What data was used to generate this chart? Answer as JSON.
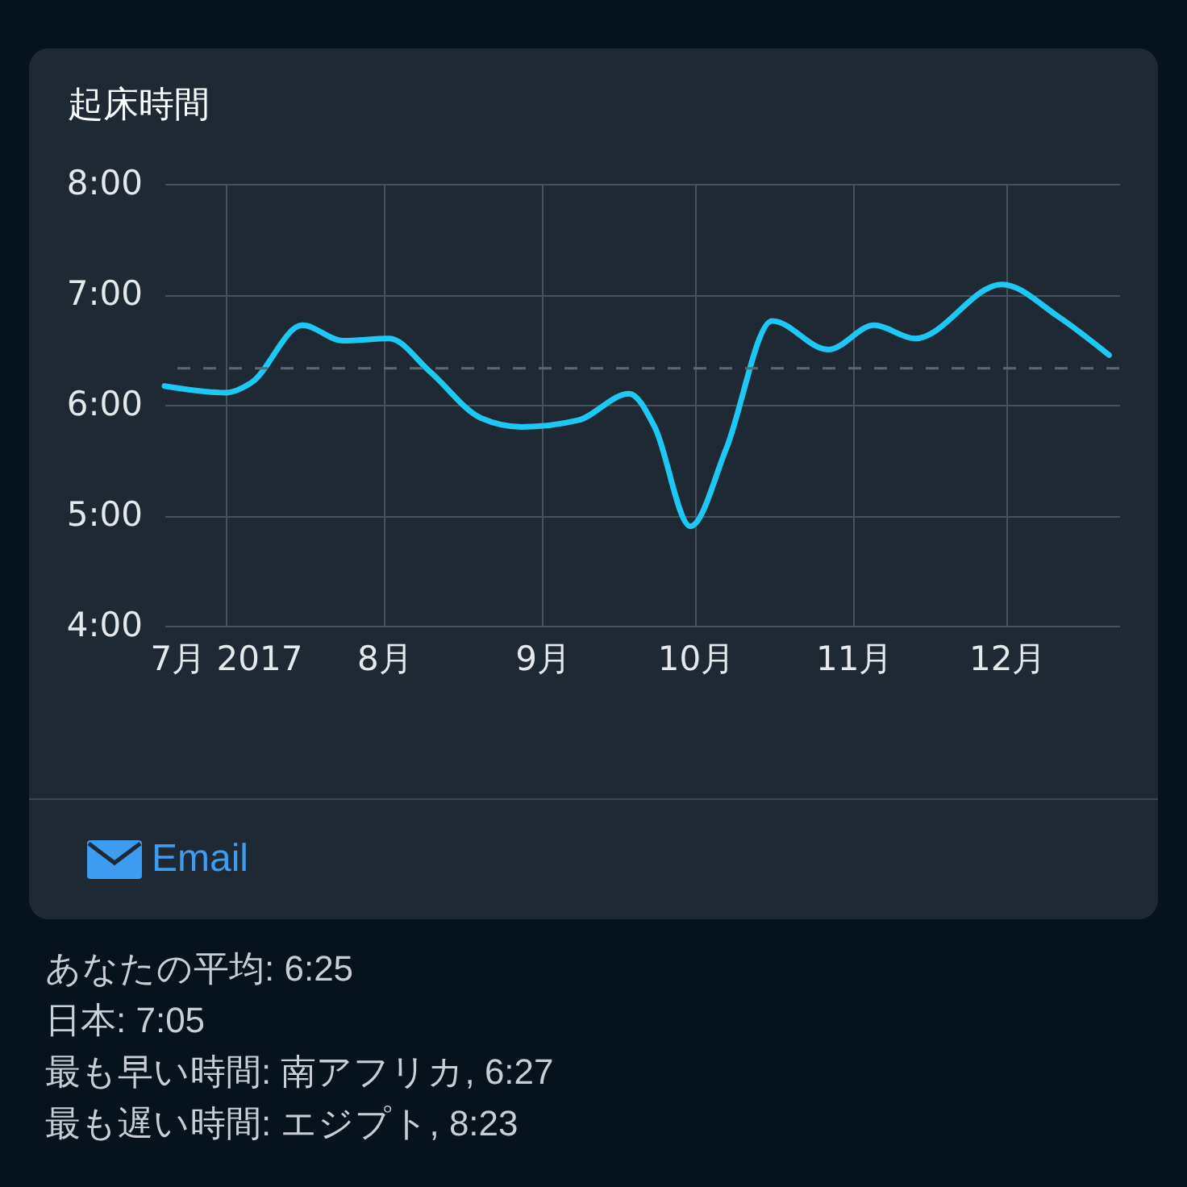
{
  "chart_data": {
    "type": "line",
    "title": "起床時間",
    "x": [
      "2017-06-19",
      "2017-07-01",
      "2017-07-06",
      "2017-07-16",
      "2017-07-24",
      "2017-08-02",
      "2017-08-10",
      "2017-08-20",
      "2017-08-28",
      "2017-09-08",
      "2017-09-18",
      "2017-09-23",
      "2017-09-30",
      "2017-10-07",
      "2017-10-16",
      "2017-10-27",
      "2017-11-05",
      "2017-11-13",
      "2017-11-30",
      "2017-12-11",
      "2017-12-21"
    ],
    "series": [
      {
        "color": "#1ec8f5",
        "values": [
          6.17,
          6.11,
          6.2,
          6.72,
          6.58,
          6.6,
          6.3,
          5.88,
          5.8,
          5.86,
          6.1,
          5.8,
          4.9,
          5.6,
          6.76,
          6.5,
          6.72,
          6.6,
          7.09,
          6.8,
          6.45
        ]
      }
    ],
    "xlim": [
      "2017-06-19",
      "2017-12-23"
    ],
    "xticks": [
      {
        "value": "2017-07-01",
        "label": "7月\n2017"
      },
      {
        "value": "2017-08-01",
        "label": "8月"
      },
      {
        "value": "2017-09-01",
        "label": "9月"
      },
      {
        "value": "2017-10-01",
        "label": "10月"
      },
      {
        "value": "2017-11-01",
        "label": "11月"
      },
      {
        "value": "2017-12-01",
        "label": "12月"
      }
    ],
    "ylim": [
      4,
      8
    ],
    "yticks": [
      {
        "value": 4,
        "label": "4:00"
      },
      {
        "value": 5,
        "label": "5:00"
      },
      {
        "value": 6,
        "label": "6:00"
      },
      {
        "value": 7,
        "label": "7:00"
      },
      {
        "value": 8,
        "label": "8:00"
      }
    ],
    "grid": true,
    "marker": "none",
    "line_style": "solid",
    "ref_lines": [
      {
        "axis": "y",
        "value": 6.33,
        "color": "#5d6873",
        "line_style": "dashed"
      }
    ],
    "annotations": [
      "Email",
      "あなたの平均: 6:25",
      "日本: 7:05",
      "最も早い時間: 南アフリカ, 6:27",
      "最も遅い時間: エジプト, 8:23"
    ]
  }
}
